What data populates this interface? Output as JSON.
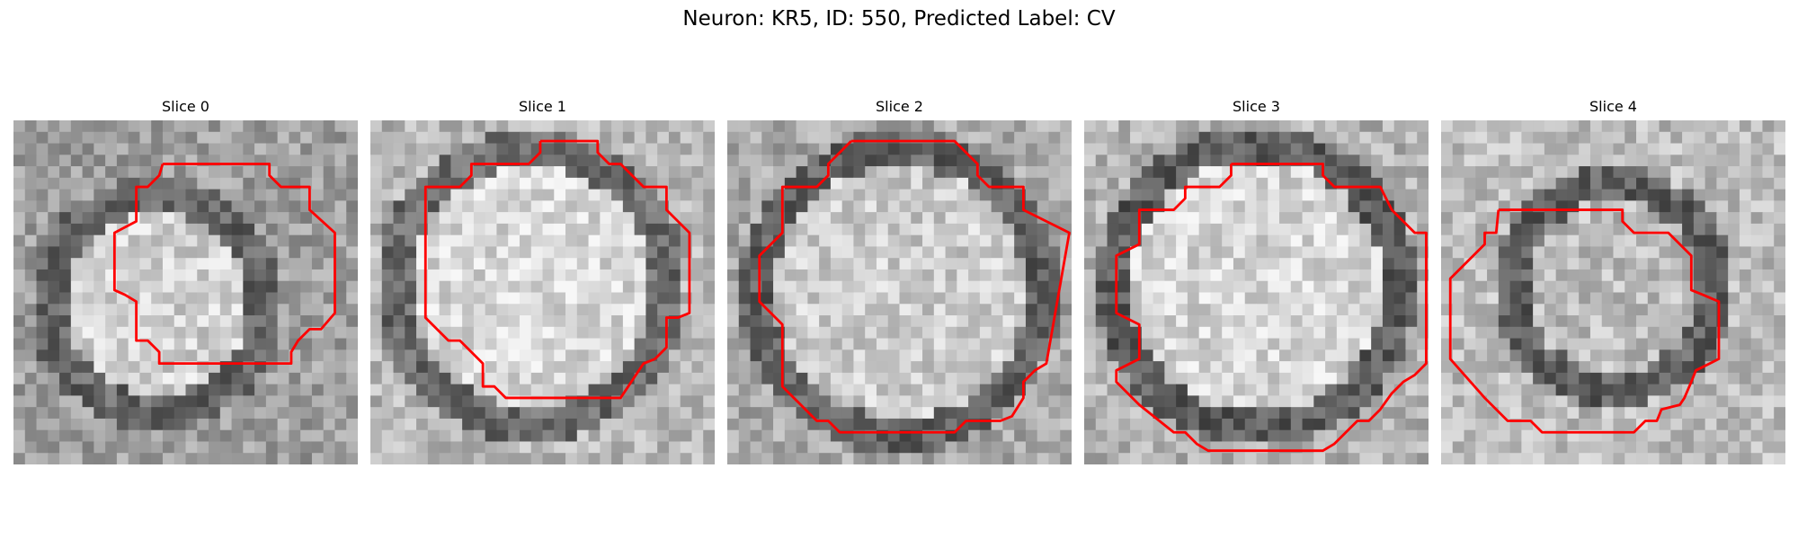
{
  "figure": {
    "title": "Neuron: KR5, ID: 550, Predicted Label: CV",
    "panels": [
      {
        "title": "Slice 0",
        "outline_color": "#ff0000"
      },
      {
        "title": "Slice 1",
        "outline_color": "#ff0000"
      },
      {
        "title": "Slice 2",
        "outline_color": "#ff0000"
      },
      {
        "title": "Slice 3",
        "outline_color": "#ff0000"
      },
      {
        "title": "Slice 4",
        "outline_color": "#ff0000"
      }
    ],
    "colormap": "grayscale",
    "overlay": "segmentation-contour"
  }
}
